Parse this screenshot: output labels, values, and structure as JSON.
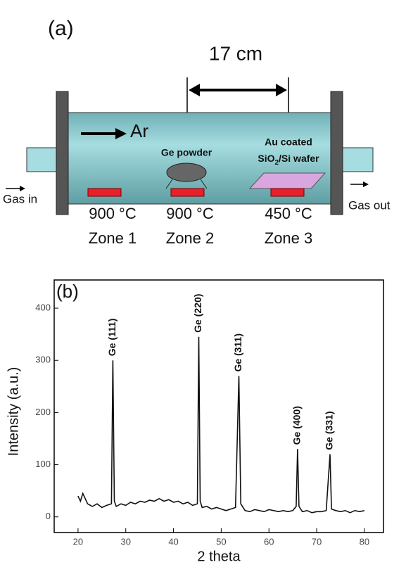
{
  "diagram": {
    "panel_label": "(a)",
    "distance": "17 cm",
    "gas": "Ar",
    "source": "Ge powder",
    "substrate_line1": "Au coated",
    "substrate_line2": [
      "SiO",
      "2",
      "/Si wafer"
    ],
    "inlet": "Gas in",
    "outlet": "Gas out",
    "zones": [
      {
        "temperature": "900 °C",
        "name": "Zone 1"
      },
      {
        "temperature": "900 °C",
        "name": "Zone 2"
      },
      {
        "temperature": "450 °C",
        "name": "Zone 3"
      }
    ]
  },
  "chart_data": {
    "type": "line",
    "panel_label": "(b)",
    "x_label": "2 theta",
    "y_label": "Intensity (a.u.)",
    "xlim": [
      15,
      84
    ],
    "ylim": [
      -30,
      454
    ],
    "xticks": [
      20,
      30,
      40,
      50,
      60,
      70,
      80
    ],
    "yticks": [
      0,
      100,
      200,
      300,
      400
    ],
    "color": "#111111",
    "x": [
      20,
      20.5,
      21,
      22,
      23,
      24,
      25,
      26,
      27,
      27.3,
      27.6,
      28,
      29,
      30,
      31,
      32,
      33,
      34,
      35,
      36,
      37,
      38,
      39,
      40,
      41,
      42,
      43,
      44,
      45,
      45.3,
      45.6,
      46,
      47,
      48,
      49,
      50,
      51,
      52,
      53,
      53.7,
      54.1,
      55,
      56,
      57,
      58,
      59,
      60,
      61,
      62,
      63,
      64,
      65,
      65.7,
      66.0,
      66.3,
      67,
      68,
      69,
      70,
      71,
      72,
      72.8,
      73.1,
      74,
      75,
      76,
      77,
      78,
      79,
      80
    ],
    "values": [
      40,
      30,
      45,
      25,
      20,
      25,
      18,
      22,
      25,
      300,
      30,
      20,
      25,
      22,
      28,
      25,
      30,
      28,
      32,
      30,
      35,
      30,
      33,
      28,
      30,
      25,
      28,
      22,
      25,
      345,
      30,
      18,
      20,
      15,
      18,
      15,
      12,
      15,
      18,
      270,
      25,
      12,
      10,
      14,
      12,
      10,
      14,
      12,
      10,
      12,
      10,
      12,
      20,
      130,
      20,
      10,
      12,
      8,
      10,
      10,
      12,
      120,
      15,
      12,
      10,
      12,
      8,
      12,
      10,
      12
    ],
    "annotations": [
      "Ge (111)",
      "Ge (220)",
      "Ge (311)",
      "Ge (400)",
      "Ge (331)"
    ]
  }
}
